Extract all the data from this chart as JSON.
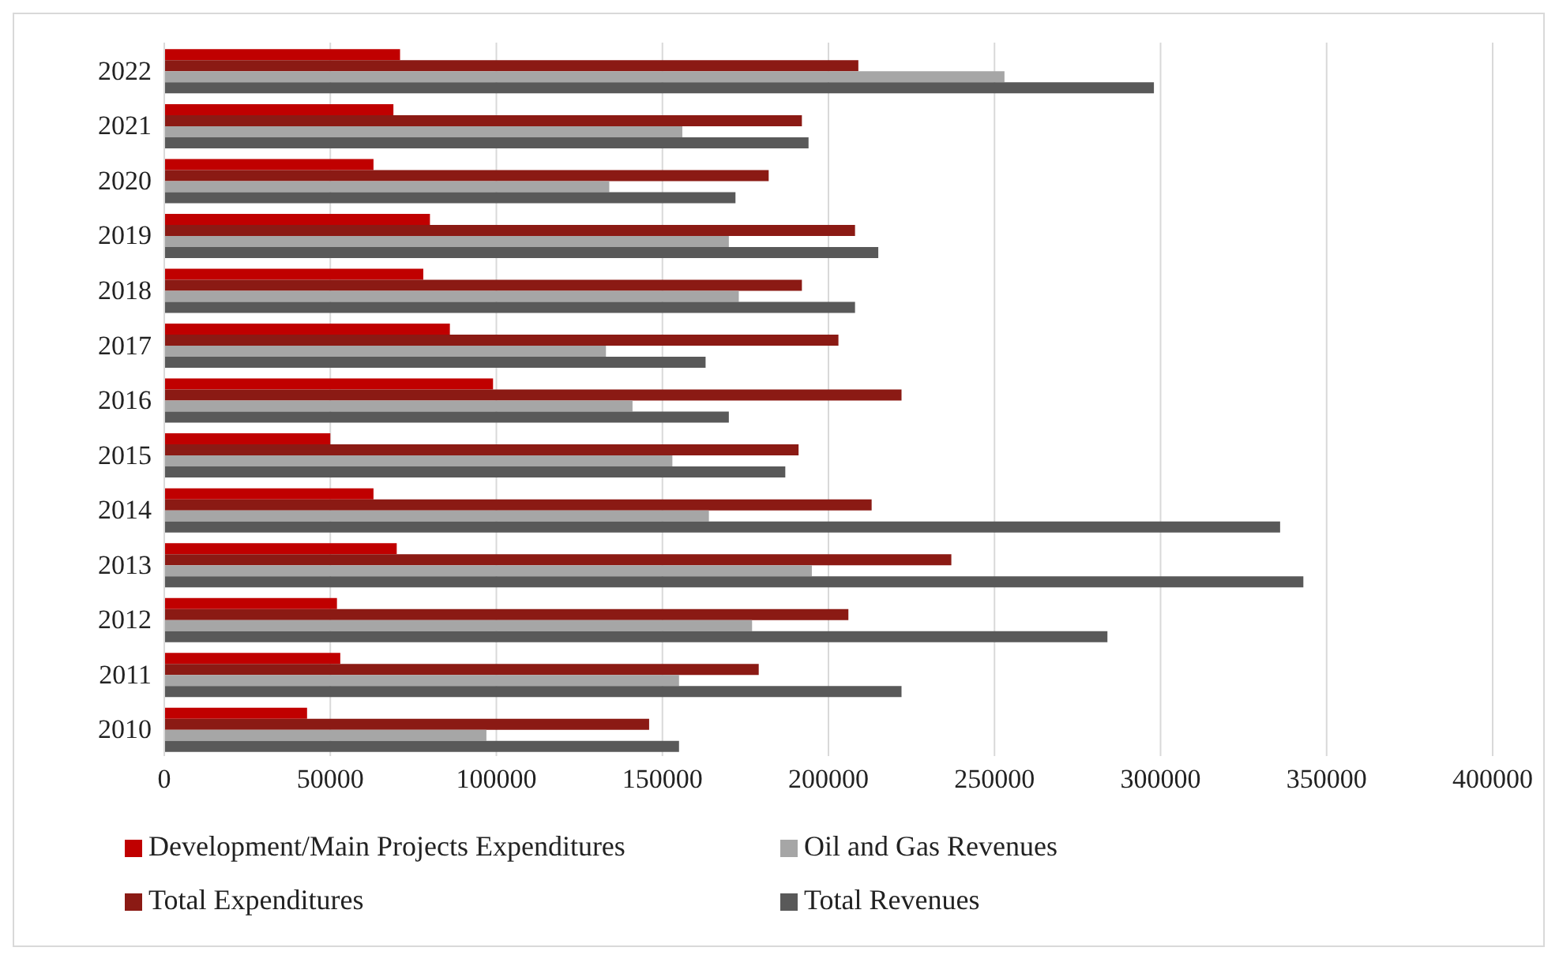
{
  "chart_data": {
    "type": "bar",
    "orientation": "horizontal",
    "categories": [
      "2022",
      "2021",
      "2020",
      "2019",
      "2018",
      "2017",
      "2016",
      "2015",
      "2014",
      "2013",
      "2012",
      "2011",
      "2010"
    ],
    "series": [
      {
        "name": "Development/Main Projects Expenditures",
        "color": "#c00000",
        "values": [
          71000,
          69000,
          63000,
          80000,
          78000,
          86000,
          99000,
          50000,
          63000,
          70000,
          52000,
          53000,
          43000
        ]
      },
      {
        "name": "Total Expenditures",
        "color": "#8b1a14",
        "values": [
          209000,
          192000,
          182000,
          208000,
          192000,
          203000,
          222000,
          191000,
          213000,
          237000,
          206000,
          179000,
          146000
        ]
      },
      {
        "name": "Oil and Gas Revenues",
        "color": "#a6a6a6",
        "values": [
          253000,
          156000,
          134000,
          170000,
          173000,
          133000,
          141000,
          153000,
          164000,
          195000,
          177000,
          155000,
          97000
        ]
      },
      {
        "name": "Total Revenues",
        "color": "#595959",
        "values": [
          298000,
          194000,
          172000,
          215000,
          208000,
          163000,
          170000,
          187000,
          336000,
          343000,
          284000,
          222000,
          155000
        ]
      }
    ],
    "xlim": [
      0,
      400000
    ],
    "xticks": [
      0,
      50000,
      100000,
      150000,
      200000,
      250000,
      300000,
      350000,
      400000
    ],
    "grid": "x",
    "legend": "bottom"
  }
}
